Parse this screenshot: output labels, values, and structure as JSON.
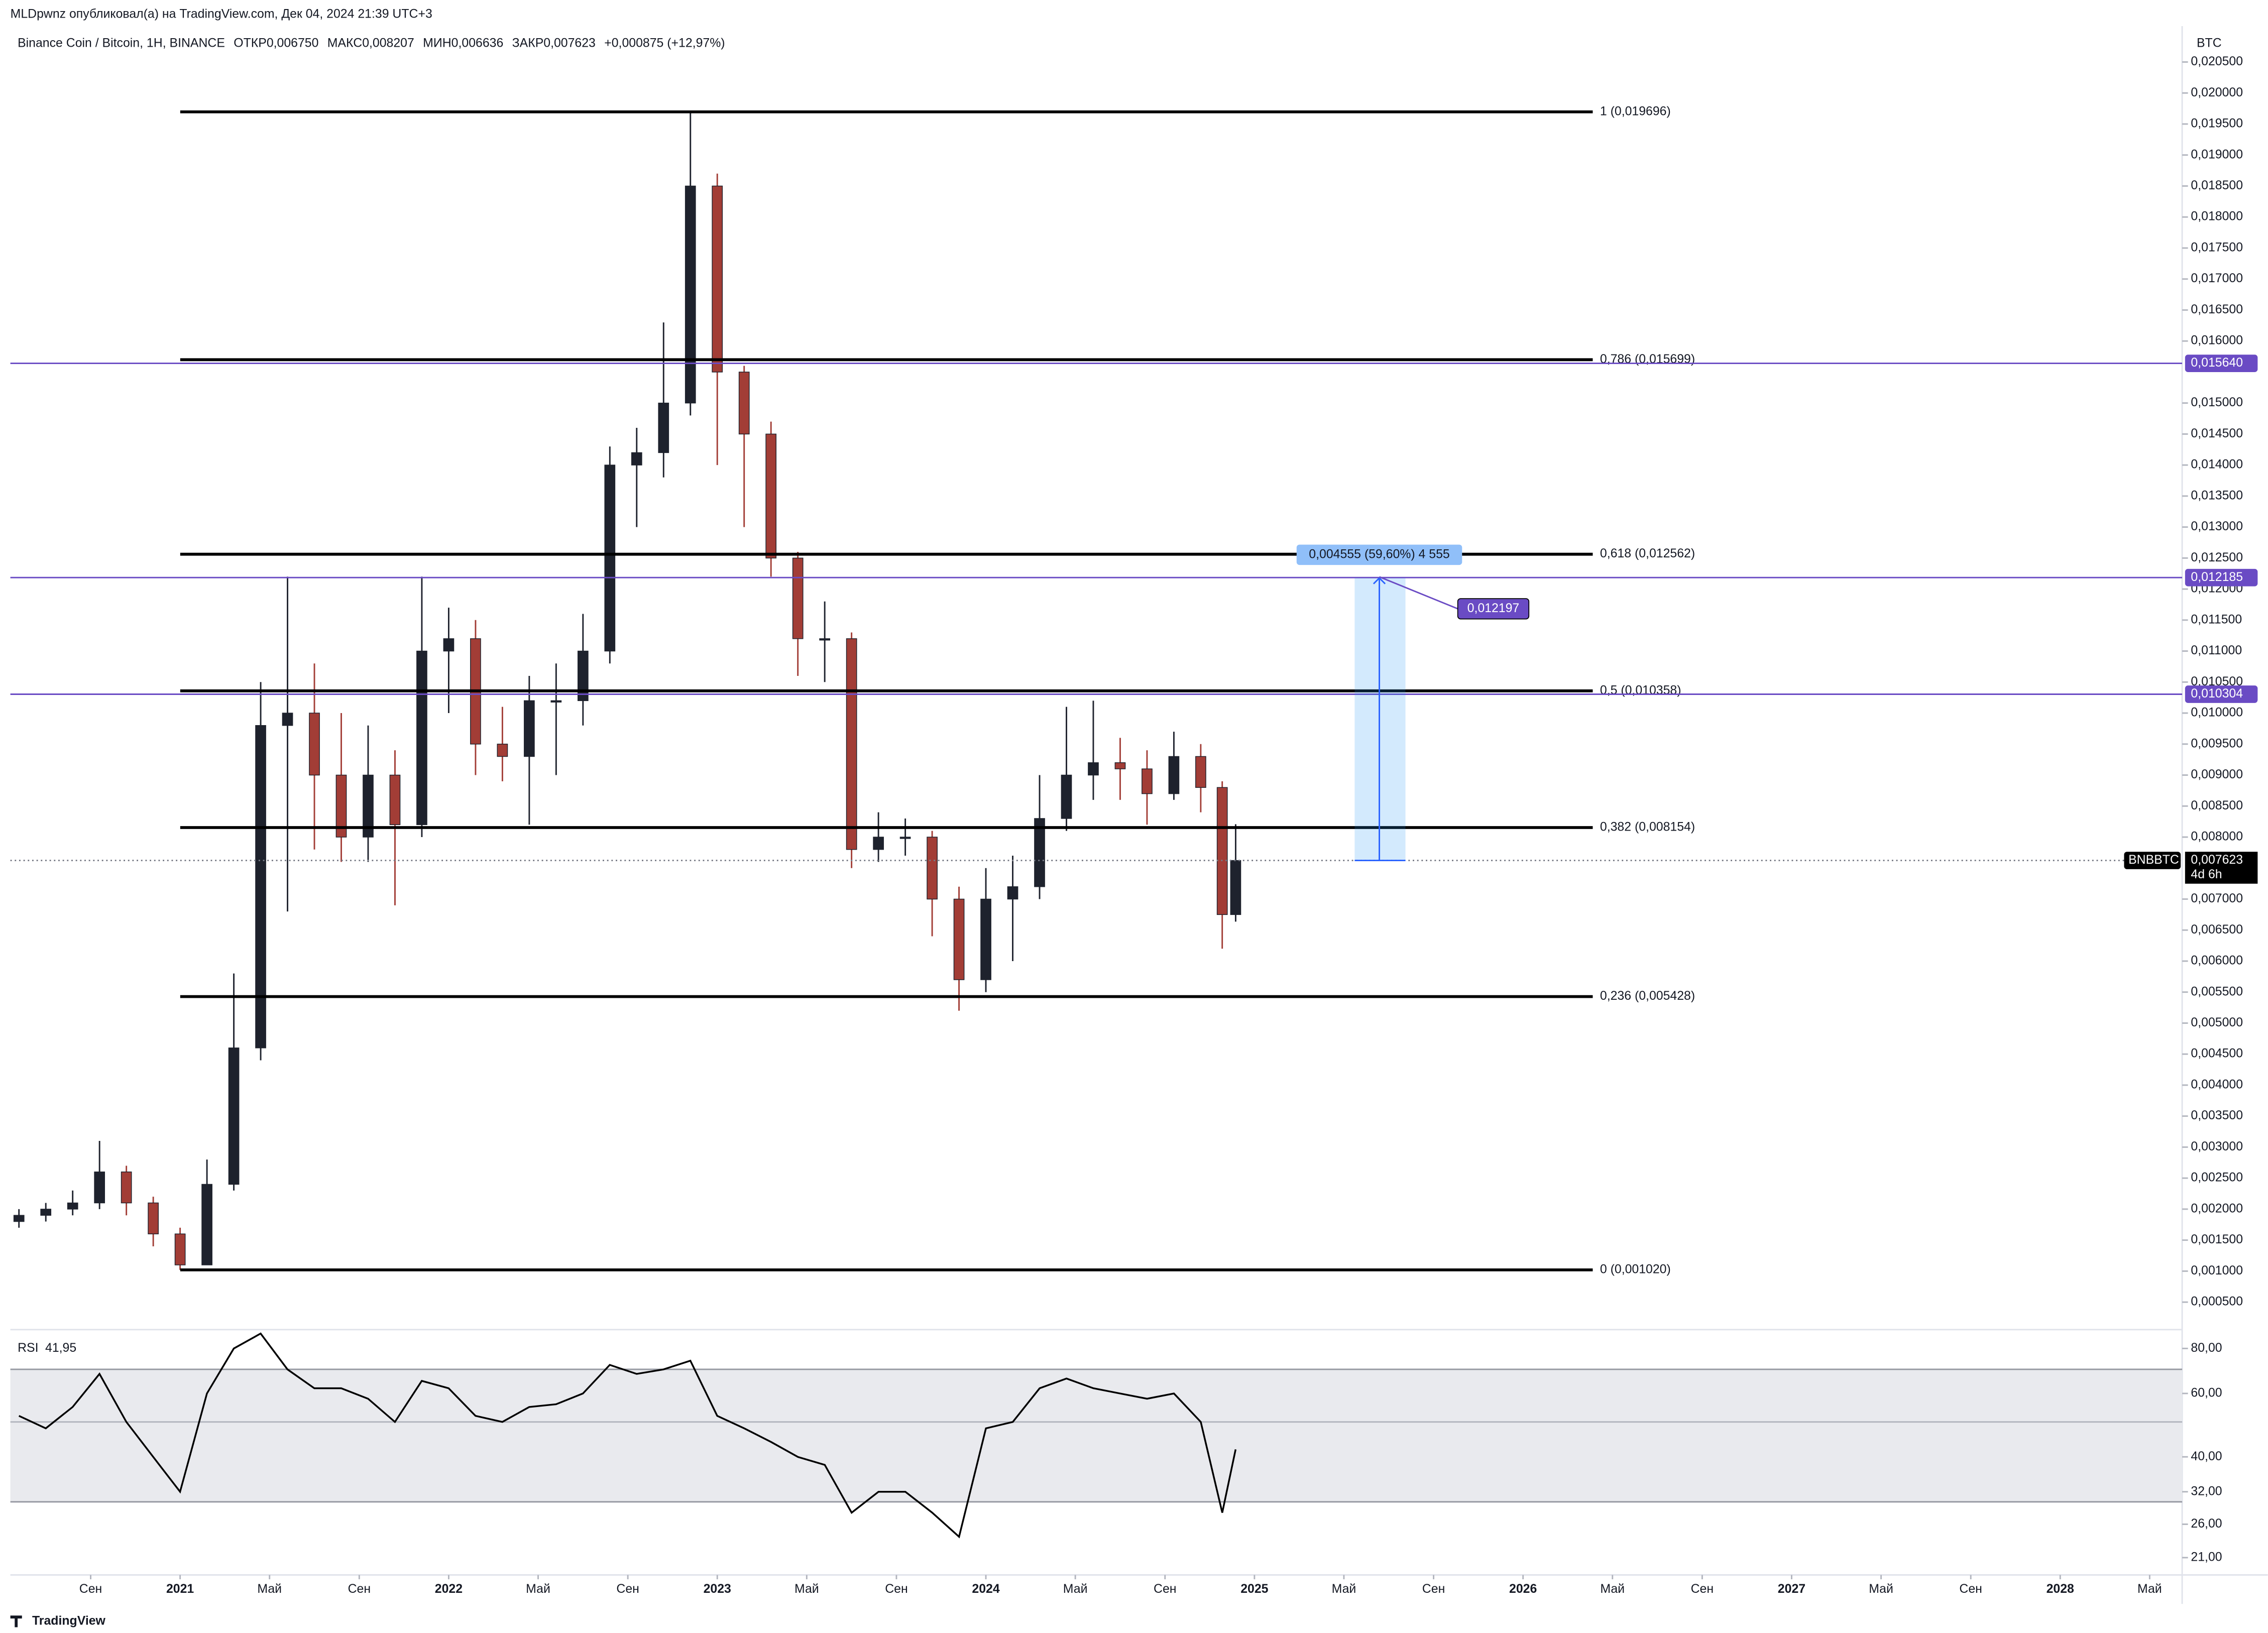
{
  "header": {
    "author_line": "MLDpwnz опубликовал(а) на TradingView.com, Дек 04, 2024 21:39 UTC+3",
    "legend": [
      "Binance Coin / Bitcoin, 1H, BINANCE",
      "ОТКР0,006750",
      "МАКС0,008207",
      "МИН0,006636",
      "ЗАКР0,007623",
      "+0,000875 (+12,97%)"
    ],
    "currency": "BTC",
    "footer": "TradingView"
  },
  "chart_data": [
    {
      "type": "candlestick",
      "x": [
        2020.4,
        2020.5,
        2020.6,
        2020.7,
        2020.8,
        2020.9,
        2021.0,
        2021.1,
        2021.2,
        2021.3,
        2021.4,
        2021.5,
        2021.6,
        2021.7,
        2021.8,
        2021.9,
        2022.0,
        2022.1,
        2022.2,
        2022.3,
        2022.4,
        2022.5,
        2022.6,
        2022.7,
        2022.8,
        2022.9,
        2023.0,
        2023.1,
        2023.2,
        2023.3,
        2023.4,
        2023.5,
        2023.6,
        2023.7,
        2023.8,
        2023.9,
        2024.0,
        2024.1,
        2024.2,
        2024.3,
        2024.4,
        2024.5,
        2024.6,
        2024.7,
        2024.8,
        2024.88,
        2024.93
      ],
      "open": [
        0.0018,
        0.0019,
        0.002,
        0.0021,
        0.0026,
        0.0021,
        0.0016,
        0.0011,
        0.0024,
        0.0046,
        0.0098,
        0.01,
        0.009,
        0.008,
        0.009,
        0.0082,
        0.011,
        0.0112,
        0.0095,
        0.0093,
        0.0102,
        0.0102,
        0.011,
        0.014,
        0.0142,
        0.015,
        0.0185,
        0.0155,
        0.0145,
        0.0125,
        0.0112,
        0.0112,
        0.0078,
        0.008,
        0.008,
        0.007,
        0.0057,
        0.007,
        0.0072,
        0.0083,
        0.009,
        0.0092,
        0.0091,
        0.0087,
        0.0093,
        0.0088,
        0.00675
      ],
      "high": [
        0.002,
        0.0021,
        0.0023,
        0.0031,
        0.0027,
        0.0022,
        0.0017,
        0.0028,
        0.0058,
        0.0105,
        0.0122,
        0.0108,
        0.01,
        0.0098,
        0.0094,
        0.0122,
        0.0117,
        0.0115,
        0.0101,
        0.0106,
        0.0108,
        0.0116,
        0.0143,
        0.0146,
        0.0163,
        0.019696,
        0.0187,
        0.0156,
        0.0147,
        0.0126,
        0.0118,
        0.0113,
        0.0084,
        0.0083,
        0.0081,
        0.0072,
        0.0075,
        0.0077,
        0.009,
        0.0101,
        0.0102,
        0.0096,
        0.0094,
        0.0097,
        0.0095,
        0.0089,
        0.008207
      ],
      "low": [
        0.0017,
        0.0018,
        0.0019,
        0.002,
        0.0019,
        0.0014,
        0.00102,
        0.0011,
        0.0023,
        0.0044,
        0.0068,
        0.0078,
        0.0076,
        0.0076,
        0.0069,
        0.008,
        0.01,
        0.009,
        0.0089,
        0.0082,
        0.009,
        0.0098,
        0.0108,
        0.013,
        0.0138,
        0.0148,
        0.014,
        0.013,
        0.0122,
        0.0106,
        0.0105,
        0.0075,
        0.0076,
        0.0077,
        0.0064,
        0.0052,
        0.0055,
        0.006,
        0.007,
        0.0081,
        0.0086,
        0.0086,
        0.0082,
        0.0086,
        0.0084,
        0.0062,
        0.006636
      ],
      "close": [
        0.0019,
        0.002,
        0.0021,
        0.0026,
        0.0021,
        0.0016,
        0.0011,
        0.0024,
        0.0046,
        0.0098,
        0.01,
        0.009,
        0.008,
        0.009,
        0.0082,
        0.011,
        0.0112,
        0.0095,
        0.0093,
        0.0102,
        0.0102,
        0.011,
        0.014,
        0.0142,
        0.015,
        0.0185,
        0.0155,
        0.0145,
        0.0125,
        0.0112,
        0.0112,
        0.0078,
        0.008,
        0.008,
        0.007,
        0.0057,
        0.007,
        0.0072,
        0.0083,
        0.009,
        0.0092,
        0.0091,
        0.0087,
        0.0093,
        0.0088,
        0.00675,
        0.007623
      ],
      "up_color": "#1e222d",
      "down_color": "#a23d36",
      "xlim": [
        2020.368,
        2028.454
      ],
      "xticks": [
        {
          "value": 2020.667,
          "label": "Сен"
        },
        2021,
        {
          "value": 2021.333,
          "label": "Май"
        },
        {
          "value": 2021.667,
          "label": "Сен"
        },
        2022,
        {
          "value": 2022.333,
          "label": "Май"
        },
        {
          "value": 2022.667,
          "label": "Сен"
        },
        2023,
        {
          "value": 2023.333,
          "label": "Май"
        },
        {
          "value": 2023.667,
          "label": "Сен"
        },
        2024,
        {
          "value": 2024.333,
          "label": "Май"
        },
        {
          "value": 2024.667,
          "label": "Сен"
        },
        2025,
        {
          "value": 2025.333,
          "label": "Май"
        },
        {
          "value": 2025.667,
          "label": "Сен"
        },
        2026,
        {
          "value": 2026.333,
          "label": "Май"
        },
        {
          "value": 2026.667,
          "label": "Сен"
        },
        2027,
        {
          "value": 2027.333,
          "label": "Май"
        },
        {
          "value": 2027.667,
          "label": "Сен"
        },
        2028,
        {
          "value": 2028.333,
          "label": "Май"
        }
      ],
      "ylim": [
        8e-05,
        0.02047
      ],
      "yticks": [
        {
          "value": 0.0005,
          "label": "0,000500"
        },
        {
          "value": 0.001,
          "label": "0,001000"
        },
        {
          "value": 0.0015,
          "label": "0,001500"
        },
        {
          "value": 0.002,
          "label": "0,002000"
        },
        {
          "value": 0.0025,
          "label": "0,002500"
        },
        {
          "value": 0.003,
          "label": "0,003000"
        },
        {
          "value": 0.0035,
          "label": "0,003500"
        },
        {
          "value": 0.004,
          "label": "0,004000"
        },
        {
          "value": 0.0045,
          "label": "0,004500"
        },
        {
          "value": 0.005,
          "label": "0,005000"
        },
        {
          "value": 0.0055,
          "label": "0,005500"
        },
        {
          "value": 0.006,
          "label": "0,006000"
        },
        {
          "value": 0.0065,
          "label": "0,006500"
        },
        {
          "value": 0.007,
          "label": "0,007000"
        },
        {
          "value": 0.008,
          "label": "0,008000"
        },
        {
          "value": 0.0085,
          "label": "0,008500"
        },
        {
          "value": 0.009,
          "label": "0,009000"
        },
        {
          "value": 0.0095,
          "label": "0,009500"
        },
        {
          "value": 0.01,
          "label": "0,010000"
        },
        {
          "value": 0.0105,
          "label": "0,010500"
        },
        {
          "value": 0.011,
          "label": "0,011000"
        },
        {
          "value": 0.0115,
          "label": "0,011500"
        },
        {
          "value": 0.012,
          "label": "0,012000"
        },
        {
          "value": 0.0125,
          "label": "0,012500"
        },
        {
          "value": 0.013,
          "label": "0,013000"
        },
        {
          "value": 0.0135,
          "label": "0,013500"
        },
        {
          "value": 0.014,
          "label": "0,014000"
        },
        {
          "value": 0.0145,
          "label": "0,014500"
        },
        {
          "value": 0.015,
          "label": "0,015000"
        },
        {
          "value": 0.016,
          "label": "0,016000"
        },
        {
          "value": 0.0165,
          "label": "0,016500"
        },
        {
          "value": 0.017,
          "label": "0,017000"
        },
        {
          "value": 0.0175,
          "label": "0,017500"
        },
        {
          "value": 0.018,
          "label": "0,018000"
        },
        {
          "value": 0.0185,
          "label": "0,018500"
        },
        {
          "value": 0.019,
          "label": "0,019000"
        },
        {
          "value": 0.0195,
          "label": "0,019500"
        },
        {
          "value": 0.02,
          "label": "0,020000"
        },
        {
          "value": 0.0205,
          "label": "0,020500"
        }
      ],
      "fib": [
        {
          "value": 0.019696,
          "label": "1 (0,019696)"
        },
        {
          "value": 0.015699,
          "label": "0,786 (0,015699)"
        },
        {
          "value": 0.012562,
          "label": "0,618 (0,012562)"
        },
        {
          "value": 0.010358,
          "label": "0,5 (0,010358)"
        },
        {
          "value": 0.008154,
          "label": "0,382 (0,008154)"
        },
        {
          "value": 0.005428,
          "label": "0,236 (0,005428)"
        },
        {
          "value": 0.00102,
          "label": "0 (0,001020)"
        }
      ],
      "levels": [
        {
          "value": 0.01564,
          "label": "0,015640"
        },
        {
          "value": 0.012185,
          "label": "0,012185"
        },
        {
          "value": 0.010304,
          "label": "0,010304"
        }
      ],
      "level_color": "#6a4bc4",
      "measure": {
        "from": 0.007623,
        "to": 0.012178,
        "label": "0,004555 (59,60%) 4 555"
      },
      "callout": {
        "value": 0.012197,
        "label": "0,012197"
      },
      "last_price": {
        "value": 0.007623,
        "label": "0,007623"
      },
      "symbol": "BNBBTC",
      "countdown": "4d 6h"
    },
    {
      "type": "line",
      "name": "RSI",
      "x": [
        2020.4,
        2020.5,
        2020.6,
        2020.7,
        2020.8,
        2020.9,
        2021.0,
        2021.1,
        2021.2,
        2021.3,
        2021.4,
        2021.5,
        2021.6,
        2021.7,
        2021.8,
        2021.9,
        2022.0,
        2022.1,
        2022.2,
        2022.3,
        2022.4,
        2022.5,
        2022.6,
        2022.7,
        2022.8,
        2022.9,
        2023.0,
        2023.1,
        2023.2,
        2023.3,
        2023.4,
        2023.5,
        2023.6,
        2023.7,
        2023.8,
        2023.9,
        2024.0,
        2024.1,
        2024.2,
        2024.3,
        2024.4,
        2024.5,
        2024.6,
        2024.7,
        2024.8,
        2024.88,
        2024.93
      ],
      "values": [
        52,
        48,
        55,
        68,
        50,
        40,
        32,
        60,
        80,
        88,
        70,
        62,
        62,
        58,
        50,
        65,
        62,
        52,
        50,
        55,
        56,
        60,
        72,
        68,
        70,
        74,
        52,
        48,
        44,
        40,
        38,
        28,
        32,
        32,
        28,
        24,
        48,
        50,
        62,
        66,
        62,
        60,
        58,
        60,
        50,
        28,
        41.95
      ],
      "color": "#000000",
      "log_scale": true,
      "ylim": [
        18.8,
        89.4
      ],
      "yticks": [
        {
          "value": 80,
          "label": "80,00"
        },
        {
          "value": 60,
          "label": "60,00"
        },
        {
          "value": 40,
          "label": "40,00"
        },
        {
          "value": 32,
          "label": "32,00"
        },
        {
          "value": 26,
          "label": "26,00"
        },
        {
          "value": 21,
          "label": "21,00"
        }
      ],
      "band": [
        30,
        70
      ],
      "mid": 50,
      "last": {
        "value": 41.95,
        "label": "41,95"
      }
    }
  ]
}
